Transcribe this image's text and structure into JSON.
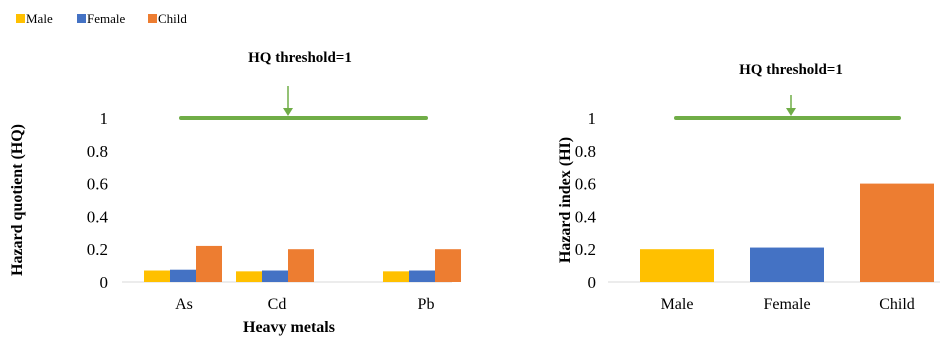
{
  "legend": [
    {
      "label": "Male",
      "color": "#FFC000"
    },
    {
      "label": "Female",
      "color": "#4472C4"
    },
    {
      "label": "Child",
      "color": "#ED7D31"
    }
  ],
  "threshold_color": "#70AD47",
  "chart_data": [
    {
      "type": "bar",
      "title": "",
      "xlabel": "Heavy metals",
      "ylabel": "Hazard quotient (HQ)",
      "ylim": [
        0,
        1.1
      ],
      "yticks": [
        0,
        0.2,
        0.4,
        0.6,
        0.8,
        1
      ],
      "ytick_labels": [
        "0",
        "0.2",
        "0.4",
        "0.6",
        "0.8",
        "1"
      ],
      "categories": [
        "As",
        "Cd",
        "Pb"
      ],
      "series": [
        {
          "name": "Male",
          "values": [
            0.07,
            0.065,
            0.065
          ]
        },
        {
          "name": "Female",
          "values": [
            0.075,
            0.07,
            0.07
          ]
        },
        {
          "name": "Child",
          "values": [
            0.22,
            0.2,
            0.2
          ]
        }
      ],
      "threshold": {
        "value": 1,
        "label": "HQ threshold=1"
      }
    },
    {
      "type": "bar",
      "title": "",
      "xlabel": "",
      "ylabel": "Hazard index (HI)",
      "ylim": [
        0,
        1.1
      ],
      "yticks": [
        0,
        0.2,
        0.4,
        0.6,
        0.8,
        1
      ],
      "ytick_labels": [
        "0",
        "0.2",
        "0.4",
        "0.6",
        "0.8",
        "1"
      ],
      "categories": [
        "Male",
        "Female",
        "Child"
      ],
      "series": [
        {
          "name": "",
          "values": [
            0.2,
            0.21,
            0.6
          ],
          "colors": [
            "#FFC000",
            "#4472C4",
            "#ED7D31"
          ]
        }
      ],
      "threshold": {
        "value": 1,
        "label": "HQ threshold=1"
      }
    }
  ]
}
